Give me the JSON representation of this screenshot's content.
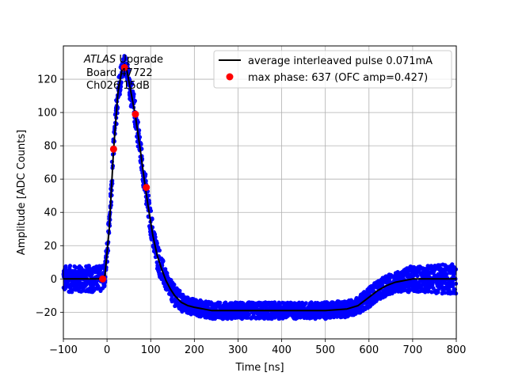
{
  "chart_data": {
    "type": "scatter",
    "xlabel": "Time [ns]",
    "ylabel": "Amplitude [ADC Counts]",
    "xlim": [
      -100,
      800
    ],
    "ylim": [
      -36,
      140
    ],
    "x_ticks": [
      -100,
      0,
      100,
      200,
      300,
      400,
      500,
      600,
      700,
      800
    ],
    "y_ticks": [
      -20,
      0,
      20,
      40,
      60,
      80,
      100,
      120
    ],
    "grid": true,
    "legend_placement": "top-right",
    "annotation": {
      "line1_italic": "ATLAS",
      "line1_rest": " Upgrade",
      "line2": "Board 47722",
      "line3": "Ch026 15dB"
    },
    "series": [
      {
        "name": "",
        "kind": "scatter-band",
        "color": "#0000ff",
        "x": [
          -100,
          -80,
          -60,
          -40,
          -20,
          -5,
          5,
          15,
          25,
          35,
          40,
          45,
          55,
          65,
          75,
          85,
          95,
          105,
          115,
          125,
          135,
          145,
          155,
          170,
          185,
          200,
          220,
          240,
          260,
          280,
          300,
          350,
          400,
          450,
          500,
          550,
          575,
          600,
          620,
          640,
          660,
          680,
          700,
          720,
          740,
          760,
          780,
          800
        ],
        "y": [
          0,
          0,
          0,
          0,
          0,
          2,
          30,
          78,
          112,
          127,
          129,
          126,
          112,
          98,
          80,
          60,
          42,
          26,
          14,
          6,
          -1,
          -6,
          -10,
          -14,
          -16,
          -17,
          -18,
          -19,
          -19,
          -19,
          -19,
          -19,
          -19,
          -19,
          -19,
          -18,
          -16,
          -11,
          -7,
          -4,
          -2,
          -1,
          0,
          0,
          0,
          0,
          0,
          0
        ],
        "spread": [
          8,
          8,
          8,
          8,
          8,
          8,
          8,
          8,
          8,
          6,
          6,
          6,
          8,
          8,
          8,
          8,
          8,
          8,
          8,
          8,
          6,
          6,
          6,
          6,
          5,
          5,
          5,
          5,
          5,
          5,
          5,
          5,
          5,
          5,
          5,
          5,
          5,
          6,
          6,
          6,
          6,
          7,
          8,
          8,
          8,
          9,
          9,
          9
        ]
      },
      {
        "name": "average interleaved pulse 0.071mA",
        "kind": "line",
        "color": "#000000",
        "x": [
          -100,
          -80,
          -60,
          -40,
          -20,
          -5,
          5,
          15,
          25,
          35,
          40,
          45,
          55,
          65,
          75,
          85,
          95,
          105,
          115,
          125,
          135,
          145,
          155,
          170,
          185,
          200,
          220,
          240,
          260,
          280,
          300,
          350,
          400,
          450,
          500,
          550,
          575,
          600,
          620,
          640,
          660,
          680,
          700,
          720,
          740,
          760,
          780,
          800
        ],
        "y": [
          0,
          0,
          0,
          0,
          0,
          2,
          30,
          78,
          112,
          127,
          129,
          126,
          112,
          98,
          80,
          60,
          42,
          26,
          14,
          6,
          -1,
          -6,
          -10,
          -14,
          -16,
          -17,
          -18,
          -19,
          -19,
          -19,
          -19,
          -19,
          -19,
          -19,
          -19,
          -18,
          -16,
          -11,
          -7,
          -4,
          -2,
          -1,
          0,
          0,
          0,
          0,
          0,
          0
        ]
      },
      {
        "name": "max phase: 637 (OFC amp=0.427)",
        "kind": "points",
        "color": "#ff0000",
        "x": [
          -10,
          15,
          40,
          65,
          90
        ],
        "y": [
          0,
          78,
          127,
          99,
          55
        ]
      }
    ]
  }
}
